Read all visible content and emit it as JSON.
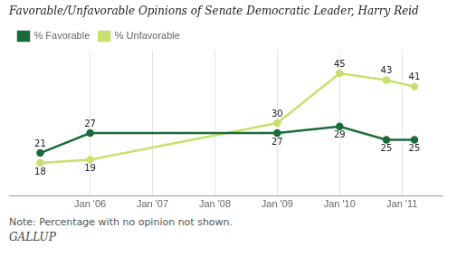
{
  "chart_data": {
    "type": "line",
    "title": "Favorable/Unfavorable Opinions of Senate Democratic Leader, Harry Reid",
    "series": [
      {
        "name": "% Favorable",
        "color": "#1a6b3c",
        "marker": "circle",
        "x": [
          2005.2,
          2006.0,
          2009.0,
          2010.0,
          2010.75,
          2011.2
        ],
        "values": [
          21,
          27,
          27,
          29,
          25,
          25
        ]
      },
      {
        "name": "% Unfavorable",
        "color": "#c8e06e",
        "marker": "circle",
        "x": [
          2005.2,
          2006.0,
          2009.0,
          2010.0,
          2010.75,
          2011.2
        ],
        "values": [
          18,
          19,
          30,
          45,
          43,
          41
        ]
      }
    ],
    "xlim": [
      2004.7,
      2011.65
    ],
    "xticks": [
      {
        "value": 2006,
        "label": "Jan '06"
      },
      {
        "value": 2007,
        "label": "Jan '07"
      },
      {
        "value": 2008,
        "label": "Jan '08"
      },
      {
        "value": 2009,
        "label": "Jan '09"
      },
      {
        "value": 2010,
        "label": "Jan '10"
      },
      {
        "value": 2011,
        "label": "Jan '11"
      }
    ],
    "ylim": [
      8,
      52
    ],
    "tick_labels": "x",
    "grid": "x",
    "legend": "top",
    "data_labels": true,
    "annotations": [
      "Note: Percentage with no opinion not shown.",
      "GALLUP"
    ]
  }
}
